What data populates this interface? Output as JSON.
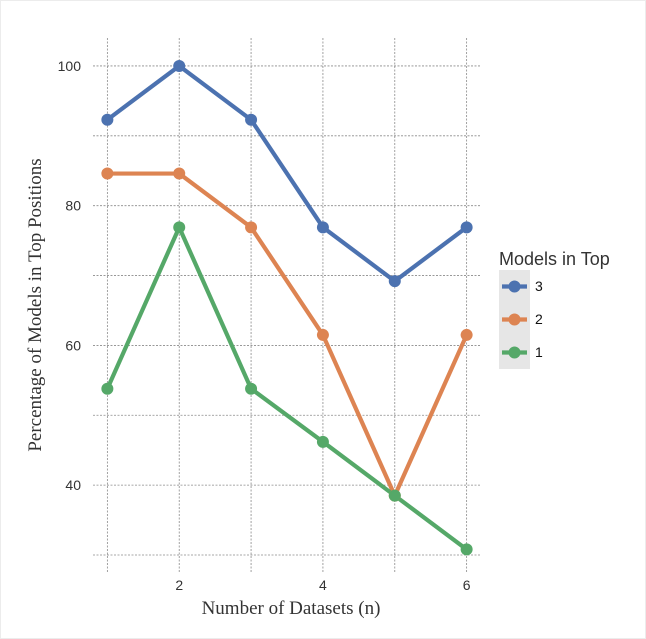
{
  "chart_data": {
    "type": "line",
    "xlabel": "Number of Datasets (n)",
    "ylabel": "Percentage of Models in Top Positions",
    "x": [
      1,
      2,
      3,
      4,
      5,
      6
    ],
    "xlim": [
      0.8,
      6.2
    ],
    "ylim": [
      29,
      104
    ],
    "x_ticks": [
      2,
      4,
      6
    ],
    "y_ticks": [
      40,
      60,
      80,
      100
    ],
    "x_grid": [
      1,
      2,
      3,
      4,
      5,
      6
    ],
    "y_grid": [
      30,
      40,
      50,
      60,
      70,
      80,
      90,
      100
    ],
    "grid": true,
    "legend": {
      "title": "Models in Top",
      "position": "right"
    },
    "series": [
      {
        "name": "3",
        "color": "#4c72b0",
        "values": [
          92.3,
          100,
          92.3,
          76.9,
          69.2,
          76.9
        ]
      },
      {
        "name": "2",
        "color": "#dd8452",
        "values": [
          84.6,
          84.6,
          76.9,
          61.5,
          38.5,
          61.5
        ]
      },
      {
        "name": "1",
        "color": "#55a868",
        "values": [
          53.8,
          76.9,
          53.8,
          46.2,
          38.5,
          30.8
        ]
      }
    ]
  }
}
